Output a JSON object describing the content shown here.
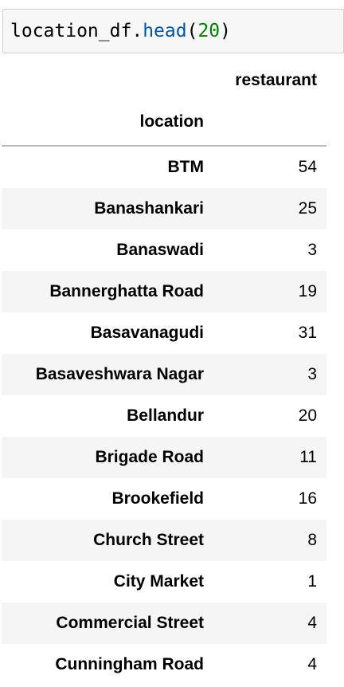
{
  "code": {
    "var": "location_df",
    "dot": ".",
    "fn": "head",
    "open": "(",
    "arg": "20",
    "close": ")"
  },
  "table": {
    "column_header": "restaurant",
    "index_name": "location",
    "rows": [
      {
        "location": "BTM",
        "restaurant": "54"
      },
      {
        "location": "Banashankari",
        "restaurant": "25"
      },
      {
        "location": "Banaswadi",
        "restaurant": "3"
      },
      {
        "location": "Bannerghatta Road",
        "restaurant": "19"
      },
      {
        "location": "Basavanagudi",
        "restaurant": "31"
      },
      {
        "location": "Basaveshwara Nagar",
        "restaurant": "3"
      },
      {
        "location": "Bellandur",
        "restaurant": "20"
      },
      {
        "location": "Brigade Road",
        "restaurant": "11"
      },
      {
        "location": "Brookefield",
        "restaurant": "16"
      },
      {
        "location": "Church Street",
        "restaurant": "8"
      },
      {
        "location": "City Market",
        "restaurant": "1"
      },
      {
        "location": "Commercial Street",
        "restaurant": "4"
      },
      {
        "location": "Cunningham Road",
        "restaurant": "4"
      }
    ]
  }
}
